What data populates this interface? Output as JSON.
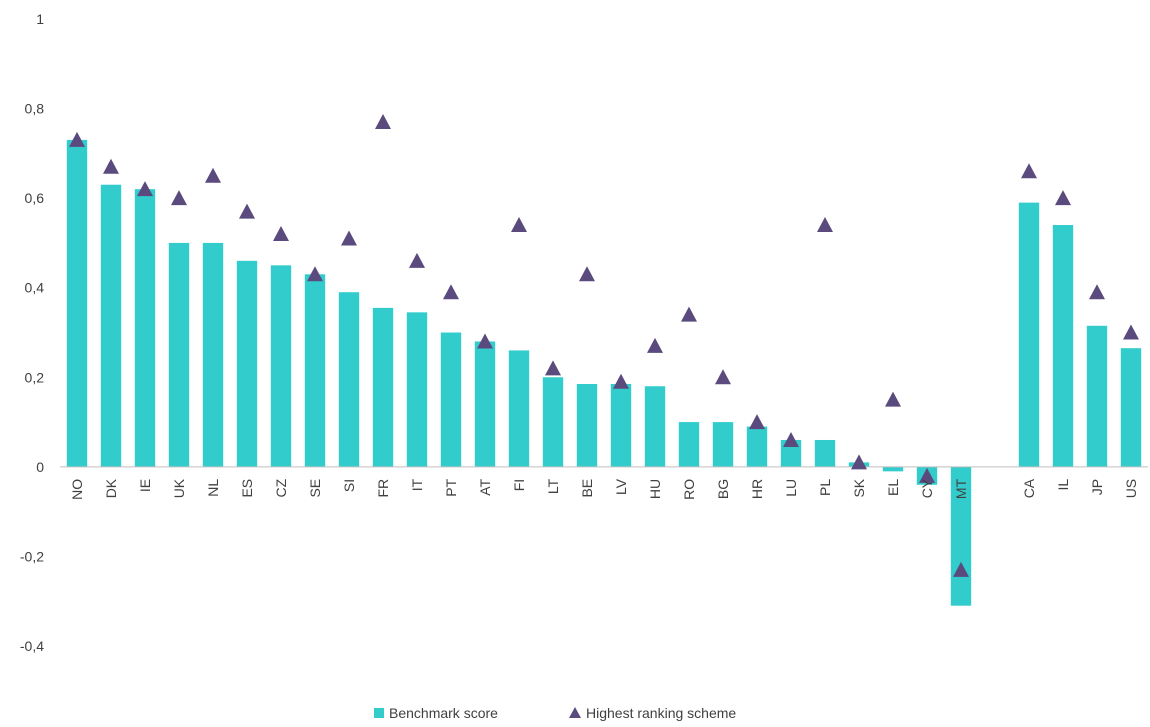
{
  "chart_data": {
    "type": "bar",
    "categories": [
      "NO",
      "DK",
      "IE",
      "UK",
      "NL",
      "ES",
      "CZ",
      "SE",
      "SI",
      "FR",
      "IT",
      "PT",
      "AT",
      "FI",
      "LT",
      "BE",
      "LV",
      "HU",
      "RO",
      "BG",
      "HR",
      "LU",
      "PL",
      "SK",
      "EL",
      "CY",
      "MT",
      "",
      "CA",
      "IL",
      "JP",
      "US"
    ],
    "series": [
      {
        "name": "Benchmark score",
        "kind": "bar",
        "color": "#33CCCC",
        "values": [
          0.73,
          0.63,
          0.62,
          0.5,
          0.5,
          0.46,
          0.45,
          0.43,
          0.39,
          0.355,
          0.345,
          0.3,
          0.28,
          0.26,
          0.2,
          0.185,
          0.185,
          0.18,
          0.1,
          0.1,
          0.09,
          0.06,
          0.06,
          0.01,
          -0.01,
          -0.04,
          -0.31,
          null,
          0.59,
          0.54,
          0.315,
          0.265
        ]
      },
      {
        "name": "Highest ranking scheme",
        "kind": "marker-triangle",
        "color": "#5B4A7E",
        "values": [
          0.73,
          0.67,
          0.62,
          0.6,
          0.65,
          0.57,
          0.52,
          0.43,
          0.51,
          0.77,
          0.46,
          0.39,
          0.28,
          0.54,
          0.22,
          0.43,
          0.19,
          0.27,
          0.34,
          0.2,
          0.1,
          0.06,
          0.54,
          0.01,
          0.15,
          -0.02,
          -0.23,
          null,
          0.66,
          0.6,
          0.39,
          0.3
        ]
      }
    ],
    "y_ticks": [
      "1",
      "0,8",
      "0,6",
      "0,4",
      "0,2",
      "0",
      "-0,2",
      "-0,4"
    ],
    "ylim": [
      -0.4,
      1.0
    ],
    "grid": false,
    "legend_position": "bottom-center"
  }
}
